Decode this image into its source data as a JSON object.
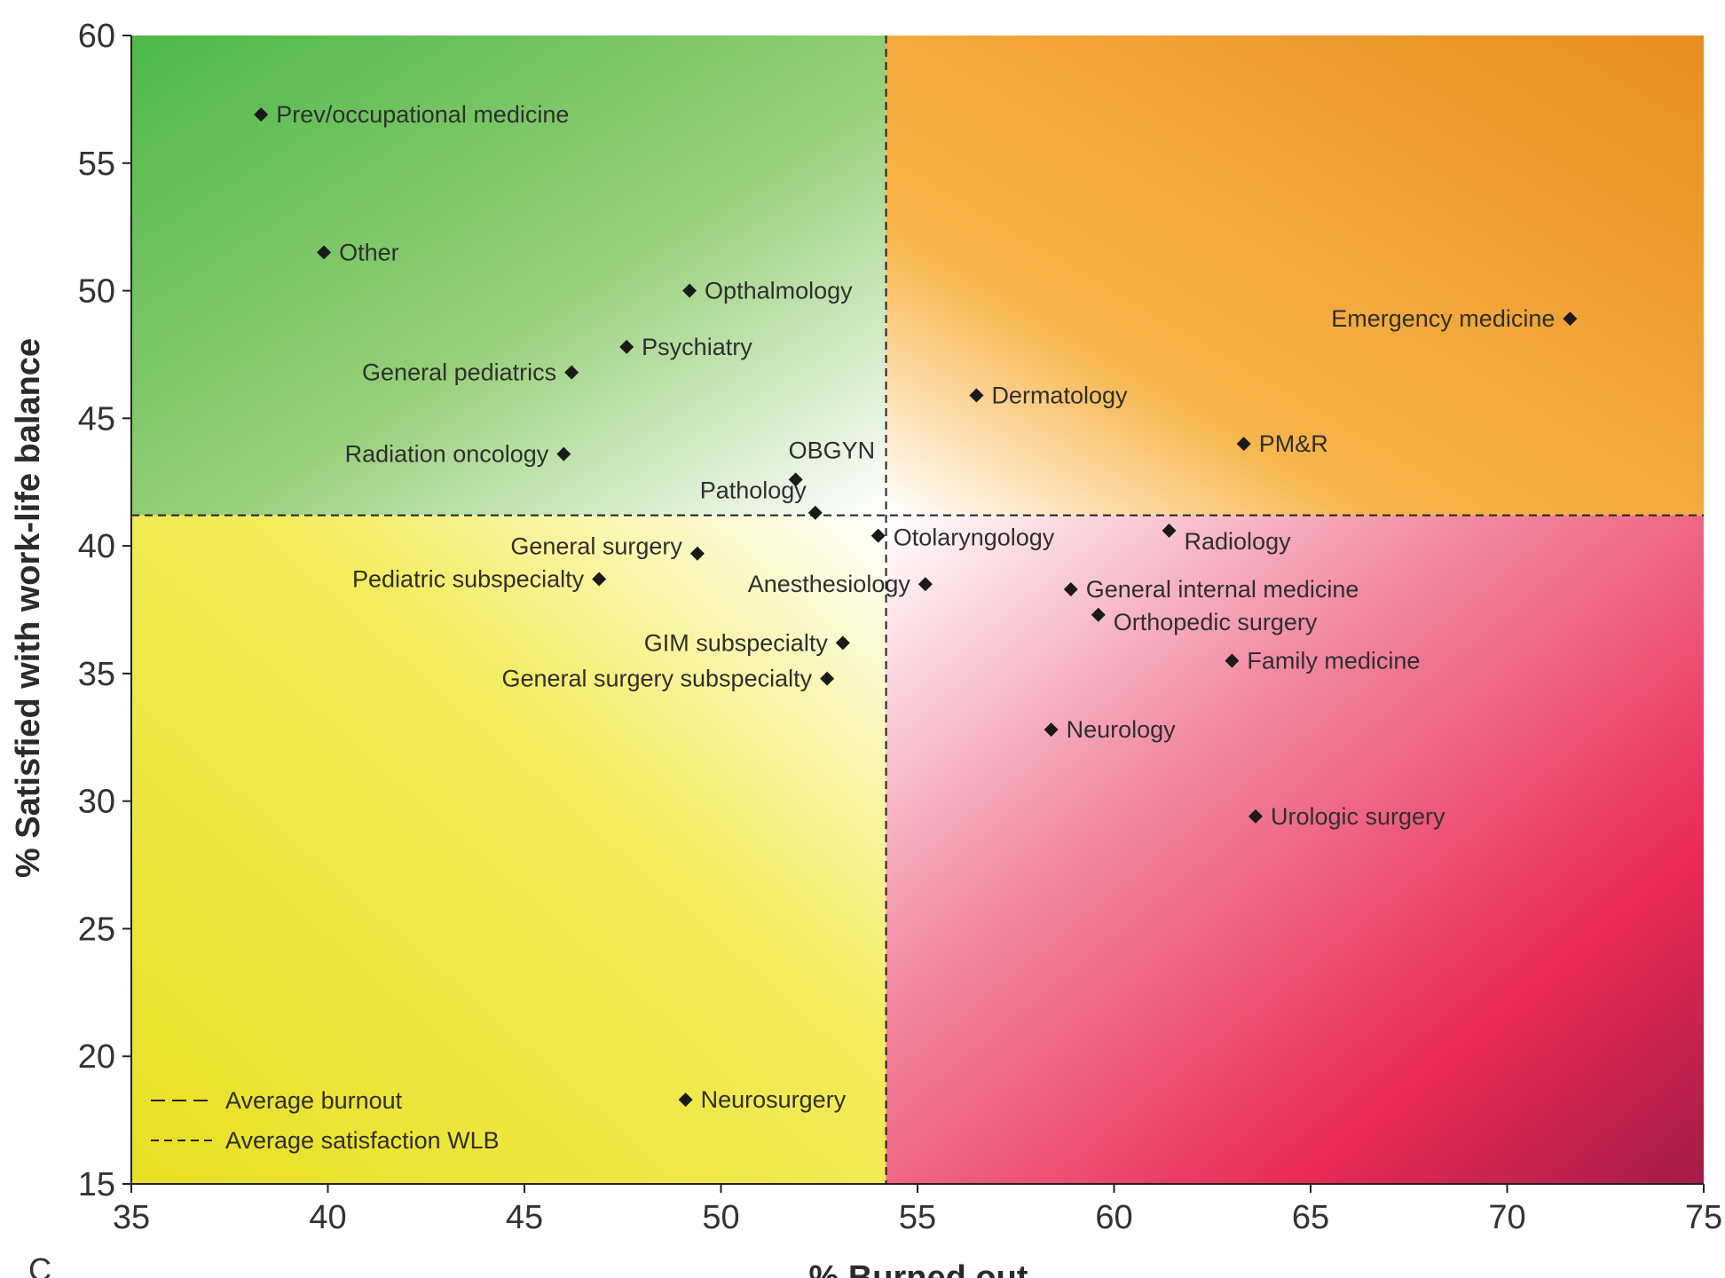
{
  "chart_data": {
    "type": "scatter",
    "xlabel": "% Burned out",
    "ylabel": "% Satisfied with work-life balance",
    "xlim": [
      35,
      75
    ],
    "ylim": [
      15,
      60
    ],
    "x_ticks": [
      "35",
      "40",
      "45",
      "50",
      "55",
      "60",
      "65",
      "70",
      "75"
    ],
    "y_ticks": [
      "15",
      "20",
      "25",
      "30",
      "35",
      "40",
      "45",
      "50",
      "55",
      "60"
    ],
    "average_burnout": 54.2,
    "average_satisfaction_wlb": 41.2,
    "quadrant_colors": {
      "top_left": "#4db848",
      "top_right": "#e8901f",
      "bottom_left": "#ece82a",
      "bottom_right": "#e8254f"
    },
    "marker": "diamond",
    "marker_color": "#1a1a1a",
    "legend": {
      "position": "bottom-left",
      "entries": [
        "Average burnout",
        "Average satisfaction WLB"
      ]
    },
    "panel_letter": "C",
    "points": [
      {
        "label": "Prev/occupational medicine",
        "x": 38.3,
        "y": 56.9
      },
      {
        "label": "Other",
        "x": 39.9,
        "y": 51.5
      },
      {
        "label": "Opthalmology",
        "x": 49.2,
        "y": 50.0
      },
      {
        "label": "Psychiatry",
        "x": 47.6,
        "y": 47.8
      },
      {
        "label": "General pediatrics",
        "x": 46.2,
        "y": 46.8
      },
      {
        "label": "Radiation oncology",
        "x": 46.0,
        "y": 43.6
      },
      {
        "label": "OBGYN",
        "x": 51.9,
        "y": 42.6
      },
      {
        "label": "Pathology",
        "x": 52.4,
        "y": 41.3
      },
      {
        "label": "General surgery",
        "x": 49.4,
        "y": 39.7
      },
      {
        "label": "Pediatric subspecialty",
        "x": 46.9,
        "y": 38.7
      },
      {
        "label": "GIM subspecialty",
        "x": 53.1,
        "y": 36.2
      },
      {
        "label": "General surgery subspecialty",
        "x": 52.7,
        "y": 34.8
      },
      {
        "label": "Neurosurgery",
        "x": 49.1,
        "y": 18.3
      },
      {
        "label": "Otolaryngology",
        "x": 54.0,
        "y": 40.4
      },
      {
        "label": "Anesthesiology",
        "x": 55.2,
        "y": 38.5
      },
      {
        "label": "Dermatology",
        "x": 56.5,
        "y": 45.9
      },
      {
        "label": "Emergency medicine",
        "x": 71.6,
        "y": 48.9
      },
      {
        "label": "PM&R",
        "x": 63.3,
        "y": 44.0
      },
      {
        "label": "Radiology",
        "x": 61.4,
        "y": 40.6
      },
      {
        "label": "General internal medicine",
        "x": 58.9,
        "y": 38.3
      },
      {
        "label": "Orthopedic surgery",
        "x": 59.6,
        "y": 37.3
      },
      {
        "label": "Family medicine",
        "x": 63.0,
        "y": 35.5
      },
      {
        "label": "Neurology",
        "x": 58.4,
        "y": 32.8
      },
      {
        "label": "Urologic surgery",
        "x": 63.6,
        "y": 29.4
      }
    ]
  }
}
